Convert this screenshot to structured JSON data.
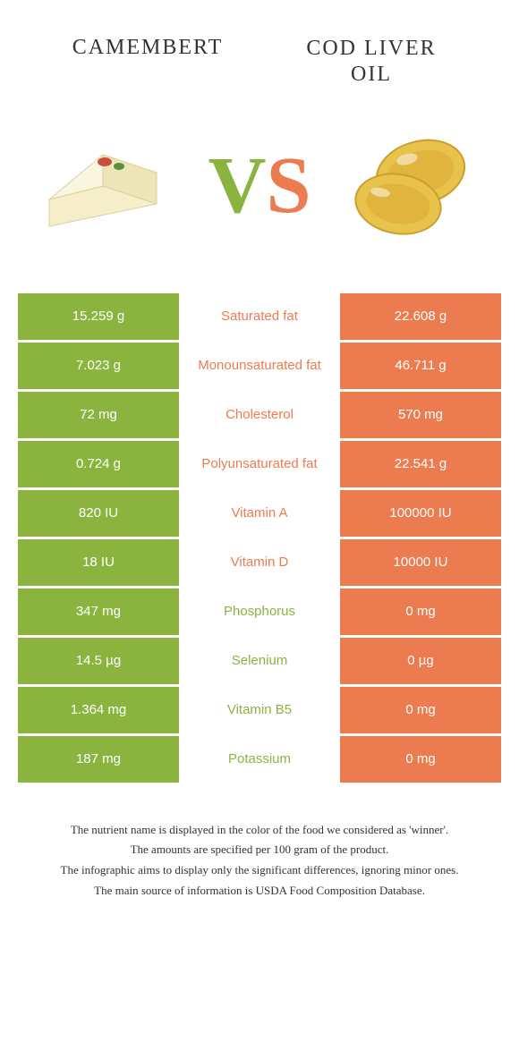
{
  "header": {
    "left_title": "CAMEMBERT",
    "right_title_line1": "COD LIVER",
    "right_title_line2": "OIL"
  },
  "vs": {
    "v": "V",
    "s": "S"
  },
  "colors": {
    "green": "#8bb43f",
    "orange": "#ec7c4f",
    "white": "#ffffff"
  },
  "rows": [
    {
      "left": "15.259 g",
      "label": "Saturated fat",
      "right": "22.608 g",
      "label_color": "#ec7c4f"
    },
    {
      "left": "7.023 g",
      "label": "Monounsaturated fat",
      "right": "46.711 g",
      "label_color": "#ec7c4f"
    },
    {
      "left": "72 mg",
      "label": "Cholesterol",
      "right": "570 mg",
      "label_color": "#ec7c4f"
    },
    {
      "left": "0.724 g",
      "label": "Polyunsaturated fat",
      "right": "22.541 g",
      "label_color": "#ec7c4f"
    },
    {
      "left": "820 IU",
      "label": "Vitamin A",
      "right": "100000 IU",
      "label_color": "#ec7c4f"
    },
    {
      "left": "18 IU",
      "label": "Vitamin D",
      "right": "10000 IU",
      "label_color": "#ec7c4f"
    },
    {
      "left": "347 mg",
      "label": "Phosphorus",
      "right": "0 mg",
      "label_color": "#8bb43f"
    },
    {
      "left": "14.5 µg",
      "label": "Selenium",
      "right": "0 µg",
      "label_color": "#8bb43f"
    },
    {
      "left": "1.364 mg",
      "label": "Vitamin B5",
      "right": "0 mg",
      "label_color": "#8bb43f"
    },
    {
      "left": "187 mg",
      "label": "Potassium",
      "right": "0 mg",
      "label_color": "#8bb43f"
    }
  ],
  "footer": {
    "line1": "The nutrient name is displayed in the color of the food we considered as 'winner'.",
    "line2": "The amounts are specified per 100 gram of the product.",
    "line3": "The infographic aims to display only the significant differences, ignoring minor ones.",
    "line4": "The main source of information is USDA Food Composition Database."
  }
}
